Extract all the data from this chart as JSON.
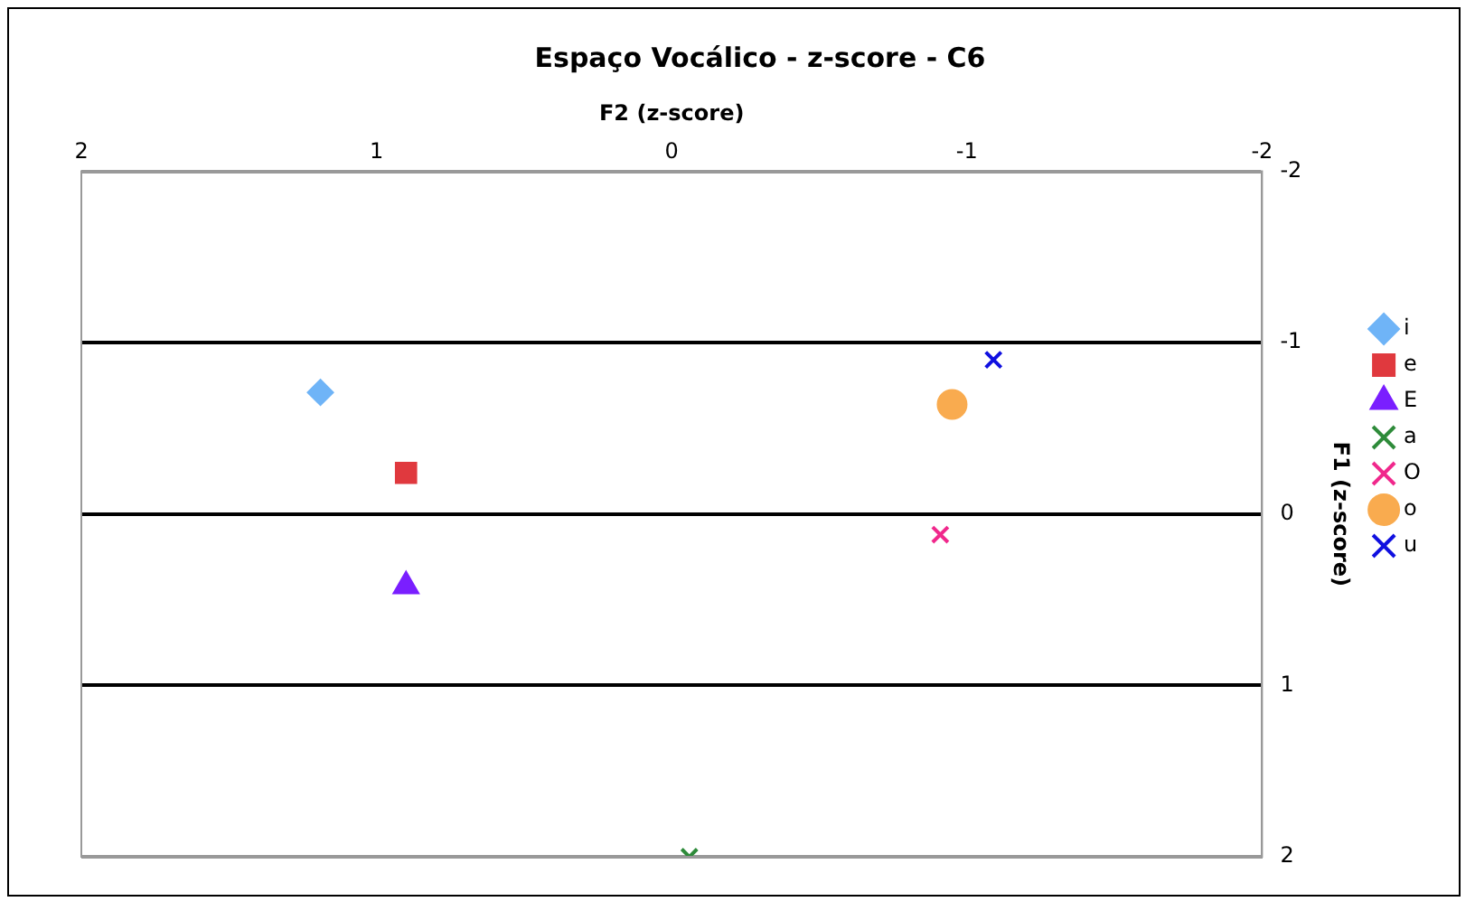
{
  "chart_data": {
    "type": "scatter",
    "title": "Espaço Vocálico - z-score - C6",
    "xlabel": "F2 (z-score)",
    "ylabel": "F1 (z-score)",
    "xlim": [
      2,
      -2
    ],
    "xticks": [
      2,
      1,
      0,
      -1,
      -2
    ],
    "ylim": [
      2,
      -2
    ],
    "yticks": [
      -2,
      -1,
      0,
      1,
      2
    ],
    "grid": "y",
    "legend": "right",
    "series": [
      {
        "name": "i",
        "color": "#6fb4f7",
        "marker": "diamond",
        "x": [
          1.19
        ],
        "values": [
          -0.71
        ]
      },
      {
        "name": "e",
        "color": "#e0393e",
        "marker": "square",
        "x": [
          0.9
        ],
        "values": [
          -0.24
        ]
      },
      {
        "name": "E",
        "color": "#7a1fff",
        "marker": "triangle",
        "x": [
          0.9
        ],
        "values": [
          0.42
        ]
      },
      {
        "name": "a",
        "color": "#2e8b3a",
        "marker": "cross",
        "x": [
          -0.06
        ],
        "values": [
          2.0
        ]
      },
      {
        "name": "O",
        "color": "#f0288c",
        "marker": "cross",
        "x": [
          -0.91
        ],
        "values": [
          0.12
        ]
      },
      {
        "name": "o",
        "color": "#f9ab4f",
        "marker": "circle",
        "x": [
          -0.95
        ],
        "values": [
          -0.64
        ]
      },
      {
        "name": "u",
        "color": "#1010e0",
        "marker": "cross",
        "x": [
          -1.09
        ],
        "values": [
          -0.9
        ]
      }
    ]
  }
}
